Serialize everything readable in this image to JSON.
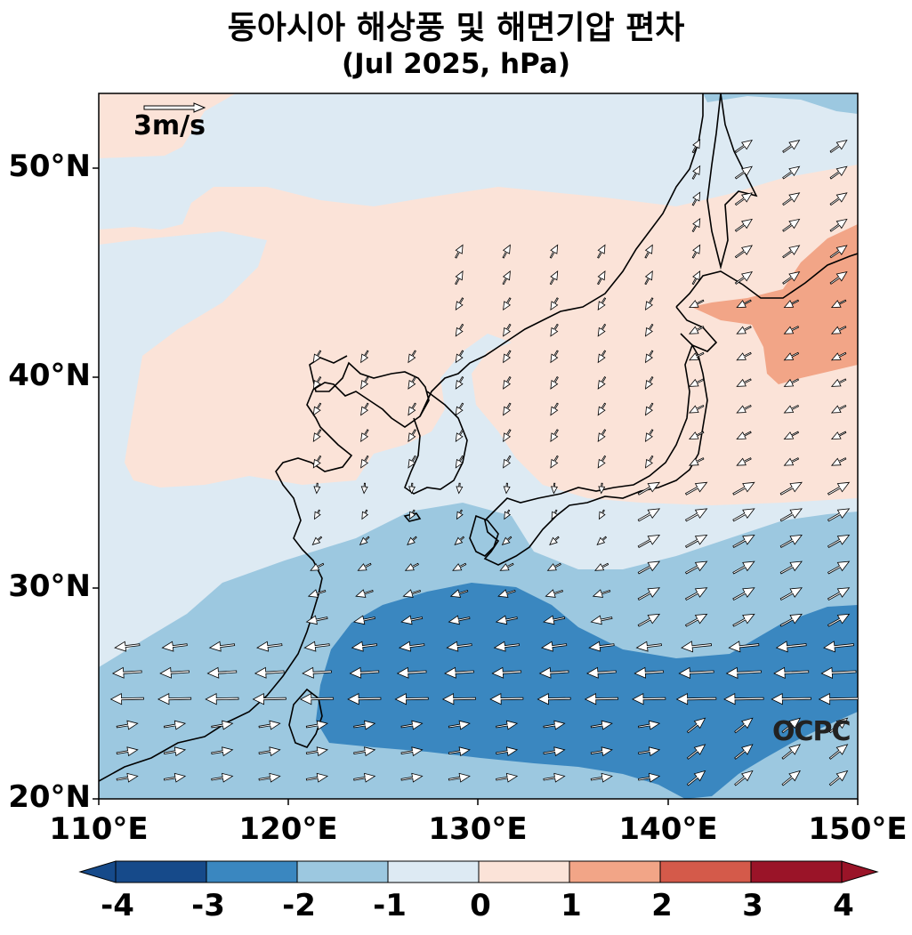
{
  "title": {
    "line1": "동아시아 해상풍 및 해면기압 편차",
    "line2": "(Jul 2025, hPa)"
  },
  "axes": {
    "lat_ticks": [
      "50°N",
      "40°N",
      "30°N",
      "20°N"
    ],
    "lon_ticks": [
      "110°E",
      "120°E",
      "130°E",
      "140°E",
      "150°E"
    ],
    "lon_range": [
      110,
      150
    ],
    "lat_range": [
      20,
      53.5
    ]
  },
  "reference_vector": {
    "label": "3m/s",
    "speed": 3
  },
  "watermark": "OCPC",
  "colorbar": {
    "labels": [
      "-4",
      "-3",
      "-2",
      "-1",
      "0",
      "1",
      "2",
      "3",
      "4"
    ],
    "colors": [
      "#164a8a",
      "#3a87c0",
      "#9cc8e0",
      "#ddeaf3",
      "#fbe3d8",
      "#f2a587",
      "#d45a4a",
      "#9a1428"
    ],
    "extend": "both"
  },
  "fill_colors": {
    "neg3": "#3a87c0",
    "neg2": "#9cc8e0",
    "neg1": "#ddeaf3",
    "pos0": "#fbe3d8",
    "pos1": "#f2a587"
  }
}
